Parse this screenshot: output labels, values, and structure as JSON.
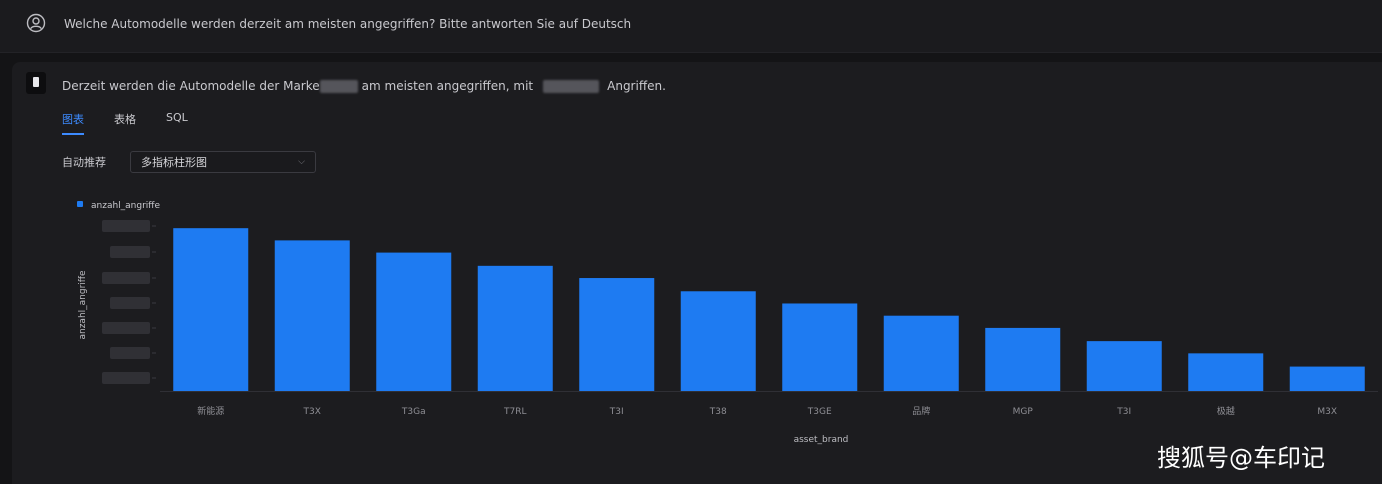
{
  "question": {
    "text": "Welche Automodelle werden derzeit am meisten angegriffen? Bitte antworten Sie auf Deutsch"
  },
  "answer": {
    "text_before": "Derzeit werden die Automodelle der Marke",
    "text_middle": "am meisten angegriffen, mit",
    "text_after": "Angriffen."
  },
  "tabs": [
    {
      "label": "图表",
      "active": true
    },
    {
      "label": "表格",
      "active": false
    },
    {
      "label": "SQL",
      "active": false
    }
  ],
  "chart_selector": {
    "label": "自动推荐",
    "value": "多指标柱形图"
  },
  "chart_data": {
    "type": "bar",
    "legend": [
      "anzahl_angriffe"
    ],
    "legend_position": "top-left",
    "xlabel": "asset_brand",
    "ylabel": "anzahl_angriffe",
    "categories": [
      "新能源",
      "T3X",
      "T3Ga",
      "T7RL",
      "T3I",
      "T38",
      "T3GE",
      "品牌",
      "MGP",
      "T3I",
      "极越",
      "M3X"
    ],
    "series": [
      {
        "name": "anzahl_angriffe",
        "values": [
          160,
          148,
          136,
          123,
          111,
          98,
          86,
          74,
          62,
          49,
          37,
          24
        ]
      }
    ],
    "ylim": [
      0,
      170
    ],
    "bar_color": "#1e7bf2",
    "grid": false
  },
  "watermark": "搜狐号@车印记"
}
